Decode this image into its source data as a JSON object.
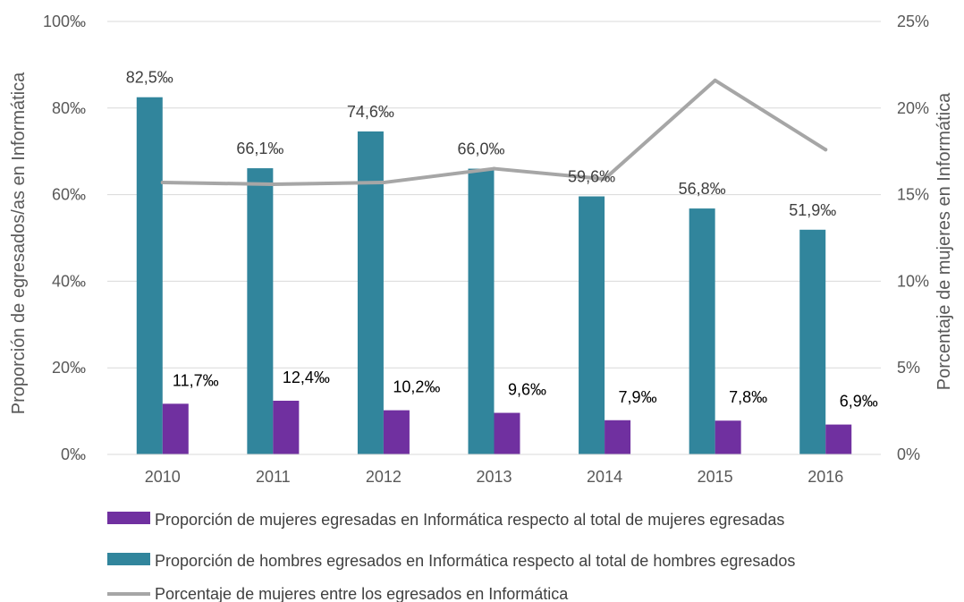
{
  "colors": {
    "women_bar": "#7030A0",
    "men_bar": "#31859C",
    "line": "#A6A6A6",
    "grid": "#D9D9D9",
    "axis_text": "#595959"
  },
  "chart_data": {
    "type": "bar",
    "categories": [
      "2010",
      "2011",
      "2012",
      "2013",
      "2014",
      "2015",
      "2016"
    ],
    "series": [
      {
        "key": "men",
        "name": "Proporción de hombres egresados en Informática respecto al total de hombres egresados",
        "type": "bar",
        "axis": "left",
        "values": [
          82.5,
          66.1,
          74.6,
          66.0,
          59.6,
          56.8,
          51.9
        ],
        "labels": [
          "82,5‰",
          "66,1‰",
          "74,6‰",
          "66,0‰",
          "59,6‰",
          "56,8‰",
          "51,9‰"
        ]
      },
      {
        "key": "women",
        "name": "Proporción de mujeres egresadas en Informática respecto al total de mujeres egresadas",
        "type": "bar",
        "axis": "left",
        "values": [
          11.7,
          12.4,
          10.2,
          9.6,
          7.9,
          7.8,
          6.9
        ],
        "labels": [
          "11,7‰",
          "12,4‰",
          "10,2‰",
          "9,6‰",
          "7,9‰",
          "7,8‰",
          "6,9‰"
        ]
      },
      {
        "key": "share",
        "name": "Porcentaje de mujeres entre los egresados en Informática",
        "type": "line",
        "axis": "right",
        "values": [
          15.7,
          15.6,
          15.7,
          16.5,
          15.9,
          21.6,
          17.6
        ]
      }
    ],
    "ylabel": "Proporción de egresados/as en Informática",
    "y2label": "Porcentaje de mujeres en Informática",
    "ylim": [
      0,
      100
    ],
    "y2lim": [
      0,
      25
    ],
    "yticks": [
      0,
      20,
      40,
      60,
      80,
      100
    ],
    "yticklabels": [
      "0‰",
      "20‰",
      "40‰",
      "60‰",
      "80‰",
      "100‰"
    ],
    "y2ticks": [
      0,
      5,
      10,
      15,
      20,
      25
    ],
    "y2ticklabels": [
      "0%",
      "5%",
      "10%",
      "15%",
      "20%",
      "25%"
    ],
    "grid": true,
    "legend_position": "bottom"
  },
  "legend": [
    {
      "key": "women",
      "label": "Proporción de mujeres egresadas en Informática respecto al total de mujeres egresadas"
    },
    {
      "key": "men",
      "label": "Proporción de hombres egresados en Informática respecto al total de hombres egresados"
    },
    {
      "key": "share",
      "label": "Porcentaje de mujeres entre los egresados en Informática"
    }
  ]
}
